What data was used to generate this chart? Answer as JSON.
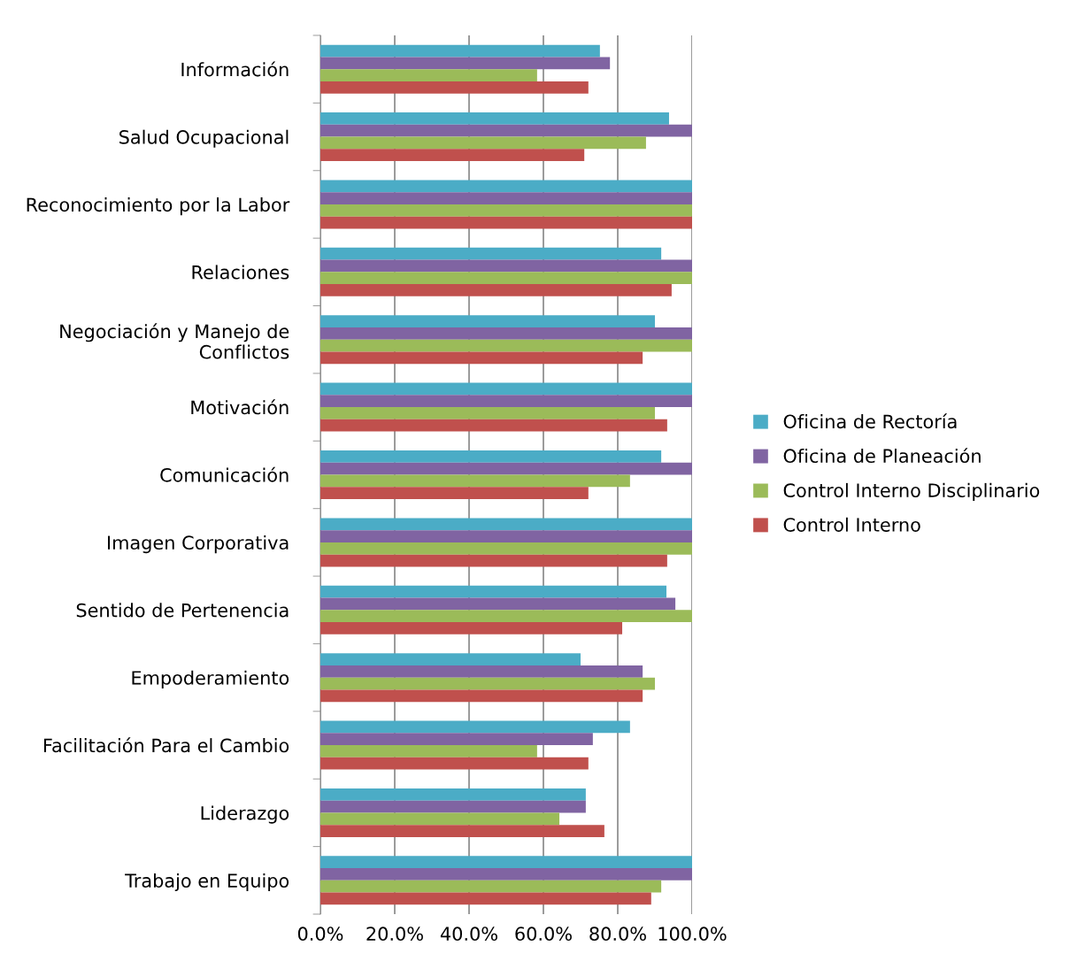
{
  "chart_data": {
    "type": "bar",
    "orientation": "horizontal",
    "categories": [
      "Información",
      "Salud Ocupacional",
      "Reconocimiento por la Labor",
      "Relaciones",
      "Negociación y Manejo de Conflictos",
      "Motivación",
      "Comunicación",
      "Imagen Corporativa",
      "Sentido de Pertenencia",
      "Empoderamiento",
      "Facilitación Para el Cambio",
      "Liderazgo",
      "Trabajo en Equipo"
    ],
    "series": [
      {
        "name": "Oficina de Rectoría",
        "color": "#4bacc6",
        "values": [
          75.2,
          93.8,
          100,
          91.7,
          90,
          100,
          91.7,
          100,
          93.1,
          70,
          83.3,
          71.4,
          100
        ]
      },
      {
        "name": "Oficina de Planeación",
        "color": "#8064a2",
        "values": [
          77.9,
          100,
          100,
          100,
          100,
          100,
          100,
          100,
          95.5,
          86.7,
          73.3,
          71.4,
          100
        ]
      },
      {
        "name": "Control Interno Disciplinario",
        "color": "#9bbb59",
        "values": [
          58.3,
          87.6,
          100,
          100,
          100,
          90,
          83.3,
          100,
          100,
          90,
          58.3,
          64.3,
          91.7
        ]
      },
      {
        "name": "Control Interno",
        "color": "#c0504d",
        "values": [
          72.1,
          71,
          100,
          94.5,
          86.7,
          93.3,
          72.1,
          93.3,
          81.2,
          86.7,
          72.1,
          76.4,
          89
        ]
      }
    ],
    "xlim": [
      0,
      100
    ],
    "xticks": [
      {
        "value": 0,
        "label": "0.0%"
      },
      {
        "value": 20,
        "label": "20.0%"
      },
      {
        "value": 40,
        "label": "40.0%"
      },
      {
        "value": 60,
        "label": "60.0%"
      },
      {
        "value": 80,
        "label": "80.0%"
      },
      {
        "value": 100,
        "label": "100.0%"
      }
    ],
    "grid": "x",
    "legend": "right"
  }
}
